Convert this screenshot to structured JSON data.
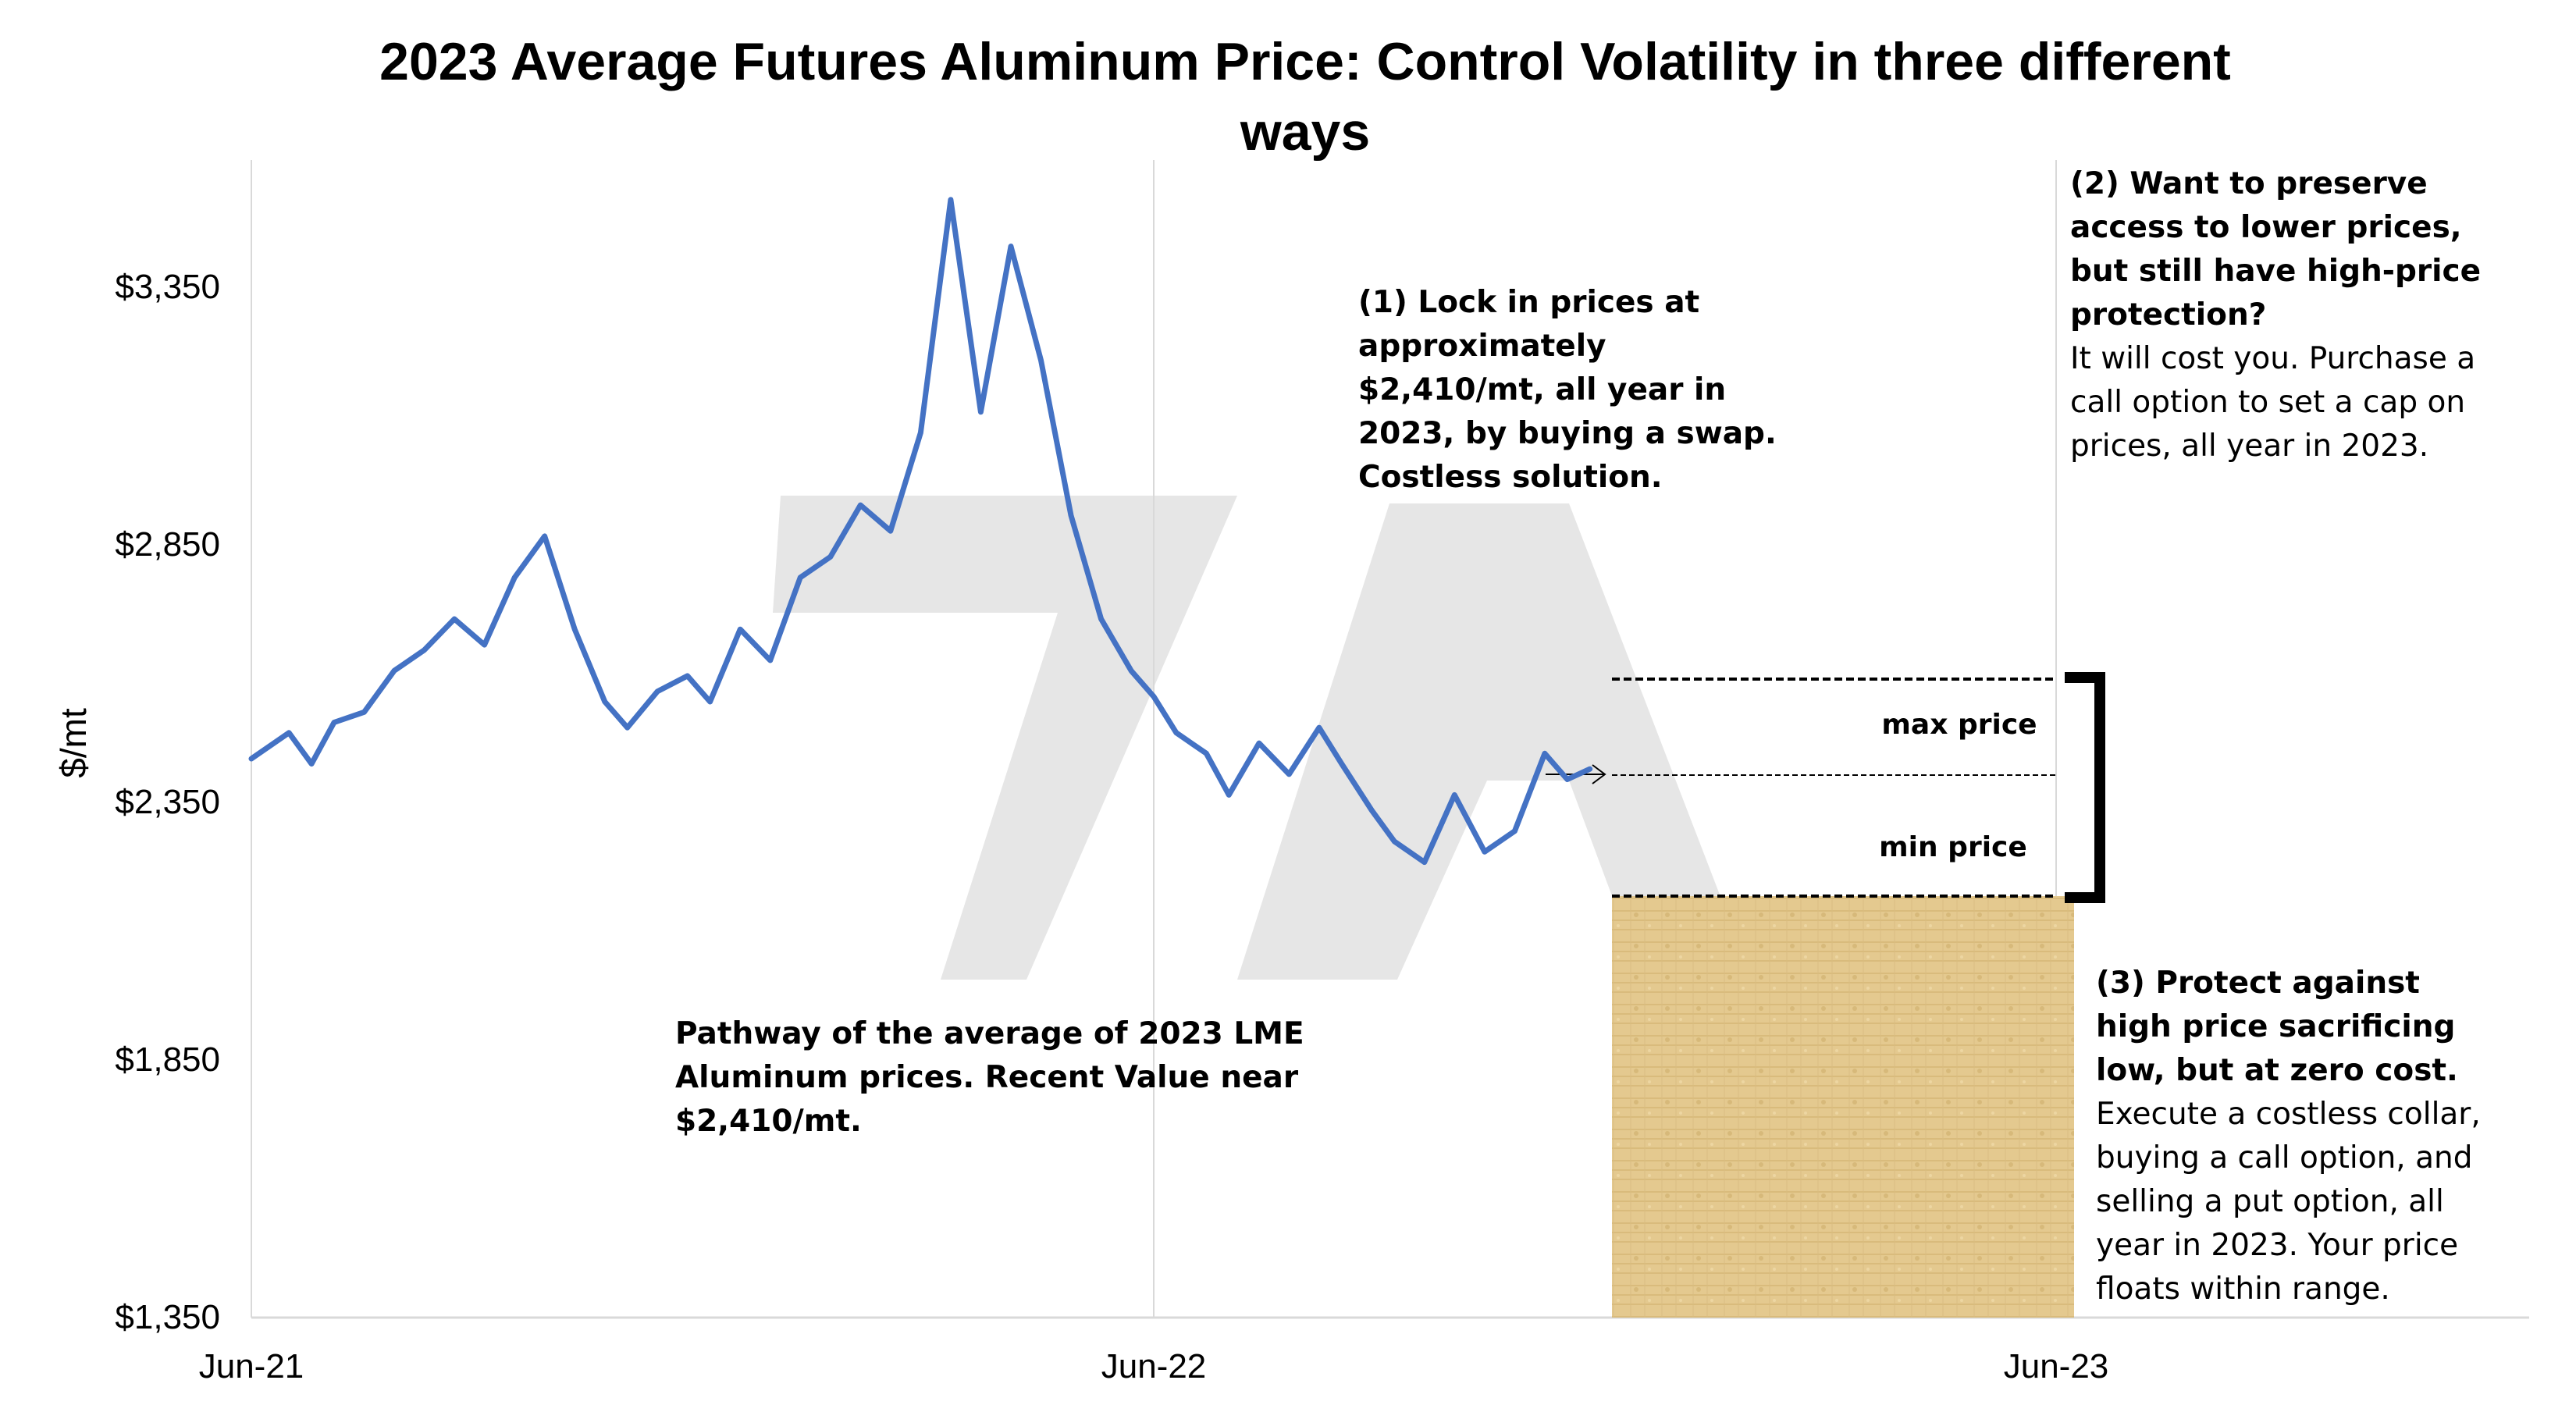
{
  "chart_data": {
    "type": "line",
    "title_line1": "2023 Average Futures Aluminum Price: Control Volatility in three different",
    "title_line2": "ways",
    "ylabel": "$/mt",
    "ylim": [
      1350,
      3570
    ],
    "y_ticks": [
      "$1,350",
      "$1,850",
      "$2,350",
      "$2,850",
      "$3,350"
    ],
    "y_tick_values": [
      1350,
      1850,
      2350,
      2850,
      3350
    ],
    "x_ticks": [
      "Jun-21",
      "Jun-22",
      "Jun-23"
    ],
    "x_tick_positions": [
      0,
      12,
      24
    ],
    "xlim": [
      0,
      30.3
    ],
    "grid": "vertical lines at tick dates",
    "series": [
      {
        "name": "",
        "color": "#4472c4",
        "x": [
          0,
          0.5,
          0.8,
          1.1,
          1.5,
          1.9,
          2.3,
          2.7,
          3.1,
          3.5,
          3.9,
          4.3,
          4.7,
          5.0,
          5.4,
          5.8,
          6.1,
          6.5,
          6.9,
          7.3,
          7.7,
          8.1,
          8.5,
          8.9,
          9.3,
          9.7,
          10.1,
          10.5,
          10.9,
          11.3,
          11.7,
          12.0,
          12.3,
          12.7,
          13.0,
          13.4,
          13.8,
          14.2,
          14.5,
          14.9,
          15.2,
          15.6,
          16.0,
          16.4,
          16.8,
          17.2,
          17.5,
          17.8
        ],
        "values": [
          2430,
          2480,
          2420,
          2500,
          2520,
          2600,
          2640,
          2700,
          2650,
          2780,
          2860,
          2680,
          2540,
          2490,
          2560,
          2590,
          2540,
          2680,
          2620,
          2780,
          2820,
          2920,
          2870,
          3060,
          3510,
          3100,
          3420,
          3200,
          2900,
          2700,
          2600,
          2550,
          2480,
          2440,
          2360,
          2460,
          2400,
          2490,
          2420,
          2330,
          2270,
          2230,
          2360,
          2250,
          2290,
          2440,
          2390,
          2410
        ]
      }
    ],
    "annotations": {
      "swap": "(1) Lock in prices at approximately $2,410/mt, all year in 2023, by buying a swap. Costless solution.",
      "call_heading": "(2) Want to preserve access to lower prices, but still have high-price protection?",
      "call_body": "It will cost you. Purchase a call option to set a cap on prices, all year in 2023.",
      "collar_heading": "(3) Protect against high price sacrificing low, but at zero cost.",
      "collar_body": "Execute a costless collar, buying a call option, and selling a put option, all year in 2023.  Your price floats within range.",
      "pathway": "Pathway of the average of 2023 LME Aluminum prices.  Recent Value near $2,410/mt.",
      "max_label": "max price",
      "min_label": "min price",
      "max_price_level": 2590,
      "current_level": 2410,
      "min_price_level": 2165
    },
    "colors": {
      "line": "#4472c4",
      "grid": "#d9d9d9",
      "watermark": "#e6e6e6",
      "texture": "#e2c68c"
    }
  }
}
